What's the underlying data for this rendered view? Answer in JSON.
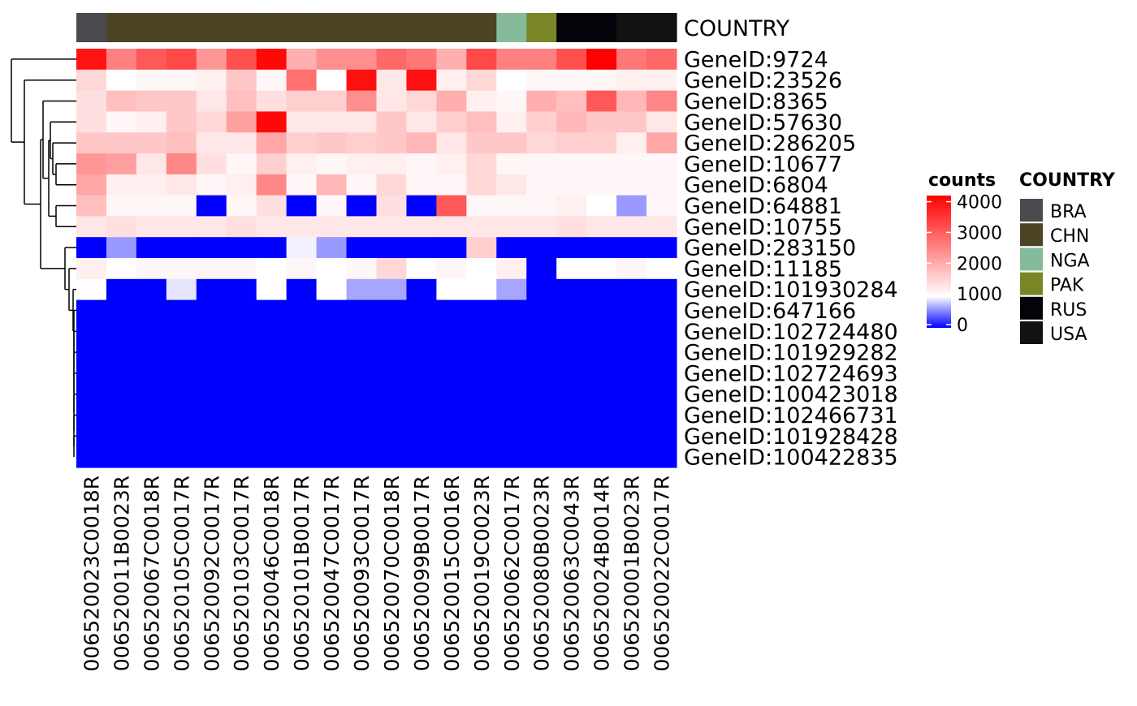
{
  "chart_data": {
    "type": "heatmap",
    "annotation_title": "COUNTRY",
    "columns": [
      "006520023C0018R",
      "006520011B0023R",
      "006520067C0018R",
      "006520105C0017R",
      "006520092C0017R",
      "006520103C0017R",
      "006520046C0018R",
      "006520101B0017R",
      "006520047C0017R",
      "006520093C0017R",
      "006520070C0018R",
      "006520099B0017R",
      "006520015C0016R",
      "006520019C0023R",
      "006520062C0017R",
      "006520080B0023R",
      "006520063C0043R",
      "006520024B0014R",
      "006520001B0023R",
      "006520022C0017R"
    ],
    "column_country": [
      "BRA",
      "CHN",
      "CHN",
      "CHN",
      "CHN",
      "CHN",
      "CHN",
      "CHN",
      "CHN",
      "CHN",
      "CHN",
      "CHN",
      "CHN",
      "CHN",
      "NGA",
      "PAK",
      "RUS",
      "RUS",
      "USA",
      "USA"
    ],
    "rows": [
      "GeneID:9724",
      "GeneID:23526",
      "GeneID:8365",
      "GeneID:57630",
      "GeneID:286205",
      "GeneID:10677",
      "GeneID:6804",
      "GeneID:64881",
      "GeneID:10755",
      "GeneID:283150",
      "GeneID:11185",
      "GeneID:101930284",
      "GeneID:647166",
      "GeneID:102724480",
      "GeneID:101929282",
      "GeneID:102724693",
      "GeneID:100423018",
      "GeneID:102466731",
      "GeneID:101928428",
      "GeneID:100422835"
    ],
    "values": [
      [
        3950,
        2600,
        3100,
        3300,
        2300,
        3200,
        4100,
        2000,
        2400,
        2400,
        2900,
        2700,
        2000,
        3300,
        2600,
        2600,
        3200,
        4200,
        2700,
        2900
      ],
      [
        1500,
        1000,
        1100,
        1100,
        1200,
        1700,
        1100,
        2800,
        1000,
        4000,
        1300,
        4000,
        1200,
        1500,
        1000,
        1100,
        1100,
        1100,
        1200,
        1200
      ],
      [
        1400,
        1800,
        1700,
        1700,
        1300,
        1800,
        1400,
        1600,
        1600,
        2400,
        1300,
        1500,
        2000,
        1200,
        1100,
        2000,
        1800,
        3100,
        1900,
        2500
      ],
      [
        1400,
        1100,
        1200,
        1700,
        1500,
        2200,
        4100,
        1300,
        1300,
        1300,
        1700,
        1300,
        1600,
        1800,
        1200,
        1600,
        1900,
        1700,
        1700,
        1300
      ],
      [
        1700,
        1700,
        1700,
        1800,
        1300,
        1300,
        2100,
        1600,
        1700,
        1600,
        1700,
        1900,
        1300,
        1700,
        1700,
        1500,
        1600,
        1600,
        1200,
        2100
      ],
      [
        2300,
        2200,
        1300,
        2500,
        1400,
        1100,
        1600,
        1200,
        1100,
        1200,
        1200,
        1100,
        1200,
        1500,
        1100,
        1100,
        1100,
        1100,
        1100,
        1100
      ],
      [
        2100,
        1200,
        1200,
        1300,
        1100,
        1200,
        2500,
        1100,
        1900,
        1100,
        1500,
        1100,
        1100,
        1500,
        1300,
        1100,
        1100,
        1100,
        1100,
        1100
      ],
      [
        1800,
        1100,
        1100,
        1100,
        0,
        1100,
        1400,
        0,
        1100,
        0,
        1400,
        0,
        3100,
        1100,
        1100,
        1100,
        1200,
        1000,
        600,
        1100
      ],
      [
        1300,
        1400,
        1300,
        1300,
        1300,
        1400,
        1300,
        1300,
        1300,
        1300,
        1300,
        1300,
        1300,
        1300,
        1300,
        1300,
        1400,
        1300,
        1300,
        1300
      ],
      [
        0,
        600,
        0,
        0,
        0,
        0,
        0,
        950,
        600,
        0,
        0,
        0,
        0,
        1600,
        0,
        0,
        0,
        0,
        0,
        0
      ],
      [
        1200,
        1000,
        1100,
        1100,
        1100,
        1100,
        1000,
        1100,
        1000,
        1100,
        1500,
        1000,
        1100,
        1000,
        1200,
        0,
        1000,
        1000,
        1100,
        1000
      ],
      [
        1000,
        0,
        0,
        900,
        0,
        0,
        1000,
        0,
        1000,
        650,
        650,
        0,
        1000,
        1000,
        650,
        0,
        0,
        0,
        0,
        0
      ],
      [
        0,
        0,
        0,
        0,
        0,
        0,
        0,
        0,
        0,
        0,
        0,
        0,
        0,
        0,
        0,
        0,
        0,
        0,
        0,
        0
      ],
      [
        0,
        0,
        0,
        0,
        0,
        0,
        0,
        0,
        0,
        0,
        0,
        0,
        0,
        0,
        0,
        0,
        0,
        0,
        0,
        0
      ],
      [
        0,
        0,
        0,
        0,
        0,
        0,
        0,
        0,
        0,
        0,
        0,
        0,
        0,
        0,
        0,
        0,
        0,
        0,
        0,
        0
      ],
      [
        0,
        0,
        0,
        0,
        0,
        0,
        0,
        0,
        0,
        0,
        0,
        0,
        0,
        0,
        0,
        0,
        0,
        0,
        0,
        0
      ],
      [
        0,
        0,
        0,
        0,
        0,
        0,
        0,
        0,
        0,
        0,
        0,
        0,
        0,
        0,
        0,
        0,
        0,
        0,
        0,
        0
      ],
      [
        0,
        0,
        0,
        0,
        0,
        0,
        0,
        0,
        0,
        0,
        0,
        0,
        0,
        0,
        0,
        0,
        0,
        0,
        0,
        0
      ],
      [
        0,
        0,
        0,
        0,
        0,
        0,
        0,
        0,
        0,
        0,
        0,
        0,
        0,
        0,
        0,
        0,
        0,
        0,
        0,
        0
      ],
      [
        0,
        0,
        0,
        0,
        0,
        0,
        0,
        0,
        0,
        0,
        0,
        0,
        0,
        0,
        0,
        0,
        0,
        0,
        0,
        0
      ]
    ],
    "color_scale": {
      "title": "counts",
      "breaks": [
        0,
        1000,
        2000,
        3000,
        4000
      ],
      "colors": [
        {
          "value": 0,
          "color": "#0000ff"
        },
        {
          "value": 1000,
          "color": "#ffffff"
        },
        {
          "value": 4200,
          "color": "#ff0000"
        }
      ]
    },
    "country_legend": {
      "title": "COUNTRY",
      "entries": [
        {
          "label": "BRA",
          "color": "#4a4a4f"
        },
        {
          "label": "CHN",
          "color": "#4b4526"
        },
        {
          "label": "NGA",
          "color": "#85bb9b"
        },
        {
          "label": "PAK",
          "color": "#7a8527"
        },
        {
          "label": "RUS",
          "color": "#040309"
        },
        {
          "label": "USA",
          "color": "#101311"
        }
      ]
    },
    "row_dendrogram": true
  }
}
